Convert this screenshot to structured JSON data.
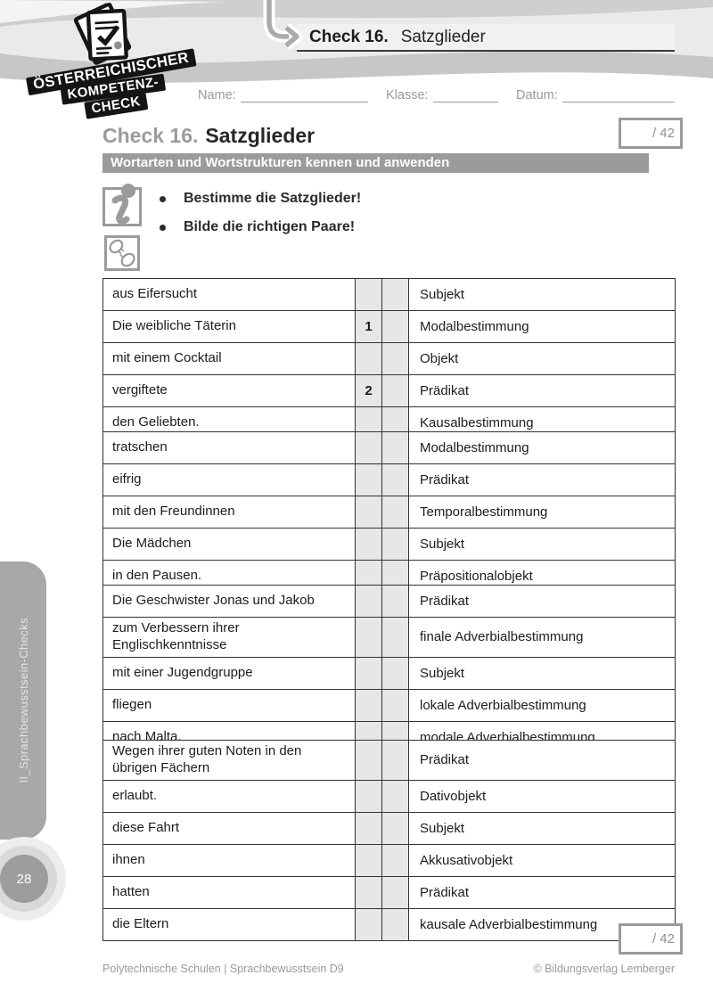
{
  "colors": {
    "accent_gray": "#9b9b9b",
    "banner_bg": "#9b9b9b",
    "answer_cell_gray": "#e7e7e7",
    "table_border": "#333333",
    "swoosh_light": "#eaeaea",
    "swoosh_dark": "#c7c7c7"
  },
  "logo": {
    "icon": "papers-check-icon",
    "lines": [
      "ÖSTERREICHISCHER",
      "KOMPETENZ-",
      "CHECK"
    ]
  },
  "header_tab": {
    "arrow_icon": "curved-arrow-icon",
    "check": "Check 16.",
    "title": "Satzglieder"
  },
  "student_fields": {
    "name": "Name:",
    "klasse": "Klasse:",
    "datum": "Datum:"
  },
  "heading": {
    "check": "Check 16.",
    "title": "Satzglieder",
    "score": "/ 42"
  },
  "competence_banner": "Wortarten und Wortstrukturen kennen und anwenden",
  "instructions": {
    "icon1": "info-icon",
    "icon2": "pairs-plug-icon",
    "items": [
      "Bestimme die Satzglieder!",
      "Bilde die richtigen Paare!"
    ]
  },
  "tables": [
    {
      "rows": [
        {
          "left": "aus Eifersucht",
          "box1": "",
          "box2": "",
          "right": "Subjekt"
        },
        {
          "left": "Die weibliche Täterin",
          "box1": "1",
          "box2": "",
          "right": "Modalbestimmung"
        },
        {
          "left": "mit einem Cocktail",
          "box1": "",
          "box2": "",
          "right": "Objekt"
        },
        {
          "left": "vergiftete",
          "box1": "2",
          "box2": "",
          "right": "Prädikat"
        },
        {
          "left": "den Geliebten.",
          "box1": "",
          "box2": "",
          "right": "Kausalbestimmung"
        }
      ]
    },
    {
      "rows": [
        {
          "left": "tratschen",
          "box1": "",
          "box2": "",
          "right": "Modalbestimmung"
        },
        {
          "left": "eifrig",
          "box1": "",
          "box2": "",
          "right": "Prädikat"
        },
        {
          "left": "mit den Freundinnen",
          "box1": "",
          "box2": "",
          "right": "Temporalbestimmung"
        },
        {
          "left": "Die Mädchen",
          "box1": "",
          "box2": "",
          "right": "Subjekt"
        },
        {
          "left": "in den Pausen.",
          "box1": "",
          "box2": "",
          "right": "Präpositionalobjekt"
        }
      ]
    },
    {
      "rows": [
        {
          "left": "Die Geschwister Jonas und Jakob",
          "box1": "",
          "box2": "",
          "right": "Prädikat"
        },
        {
          "left": "zum Verbessern ihrer Englischkenntnisse",
          "box1": "",
          "box2": "",
          "right": "finale Adverbialbestimmung"
        },
        {
          "left": "mit einer Jugendgruppe",
          "box1": "",
          "box2": "",
          "right": "Subjekt"
        },
        {
          "left": "fliegen",
          "box1": "",
          "box2": "",
          "right": "lokale Adverbialbestimmung"
        },
        {
          "left": "nach Malta.",
          "box1": "",
          "box2": "",
          "right": "modale Adverbialbestimmung"
        }
      ]
    },
    {
      "rows": [
        {
          "left": "Wegen ihrer guten Noten in den übrigen Fächern",
          "box1": "",
          "box2": "",
          "right": "Prädikat"
        },
        {
          "left": "erlaubt.",
          "box1": "",
          "box2": "",
          "right": "Dativobjekt"
        },
        {
          "left": "diese Fahrt",
          "box1": "",
          "box2": "",
          "right": "Subjekt"
        },
        {
          "left": "ihnen",
          "box1": "",
          "box2": "",
          "right": "Akkusativobjekt"
        },
        {
          "left": "hatten",
          "box1": "",
          "box2": "",
          "right": "Prädikat"
        },
        {
          "left": "die Eltern",
          "box1": "",
          "box2": "",
          "right": "kausale Adverbialbestimmung"
        }
      ]
    }
  ],
  "sidebar": {
    "label": "II_Sprachbewusstsein-Checks",
    "page_number": "28"
  },
  "bottom_score": "/ 42",
  "footer": {
    "left": "Polytechnische Schulen | Sprachbewusstsein D9",
    "right": "© Bildungsverlag Lemberger"
  }
}
